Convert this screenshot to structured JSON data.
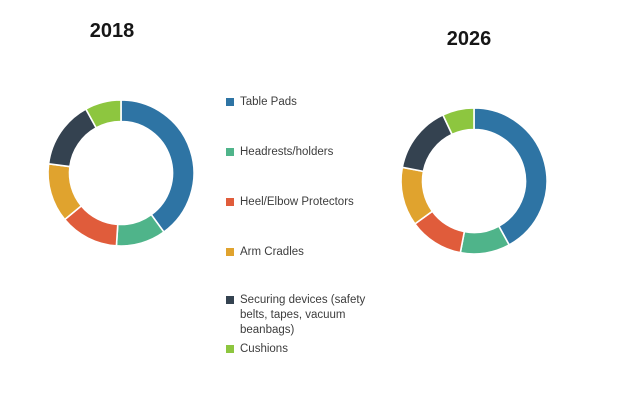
{
  "page": {
    "background": "#ffffff"
  },
  "chart_data": [
    {
      "type": "pie",
      "subtype": "donut",
      "title": "2018",
      "labels": [
        "Table Pads",
        "Headrests/holders",
        "Heel/Elbow Protectors",
        "Arm Cradles",
        "Securing devices (safety belts, tapes, vacuum beanbags)",
        "Cushions"
      ],
      "values_percent": [
        40,
        11,
        13,
        13,
        15,
        8
      ],
      "colors": [
        "#2E74A4",
        "#4FB48A",
        "#E05C3B",
        "#E0A32E",
        "#344250",
        "#8DC63F"
      ],
      "start_angle_deg": 0,
      "direction": "clockwise",
      "hole_ratio": 0.7,
      "gap_color": "#ffffff"
    },
    {
      "type": "pie",
      "subtype": "donut",
      "title": "2026",
      "labels": [
        "Table Pads",
        "Headrests/holders",
        "Heel/Elbow Protectors",
        "Arm Cradles",
        "Securing devices (safety belts, tapes, vacuum beanbags)",
        "Cushions"
      ],
      "values_percent": [
        42,
        11,
        12,
        13,
        15,
        7
      ],
      "colors": [
        "#2E74A4",
        "#4FB48A",
        "#E05C3B",
        "#E0A32E",
        "#344250",
        "#8DC63F"
      ],
      "start_angle_deg": 0,
      "direction": "clockwise",
      "hole_ratio": 0.7,
      "gap_color": "#ffffff"
    }
  ],
  "legend": {
    "items": [
      {
        "key": "table-pads",
        "label": "Table Pads",
        "color": "#2E74A4",
        "swatch": "square-icon"
      },
      {
        "key": "headrests-holders",
        "label": "Headrests/holders",
        "color": "#4FB48A",
        "swatch": "square-icon"
      },
      {
        "key": "heel-elbow-protectors",
        "label": "Heel/Elbow Protectors",
        "color": "#E05C3B",
        "swatch": "square-icon"
      },
      {
        "key": "arm-cradles",
        "label": "Arm Cradles",
        "color": "#E0A32E",
        "swatch": "square-icon"
      },
      {
        "key": "securing-devices",
        "label": "Securing devices (safety belts, tapes, vacuum beanbags)",
        "color": "#344250",
        "swatch": "square-icon"
      },
      {
        "key": "cushions",
        "label": "Cushions",
        "color": "#8DC63F",
        "swatch": "square-icon"
      }
    ]
  }
}
